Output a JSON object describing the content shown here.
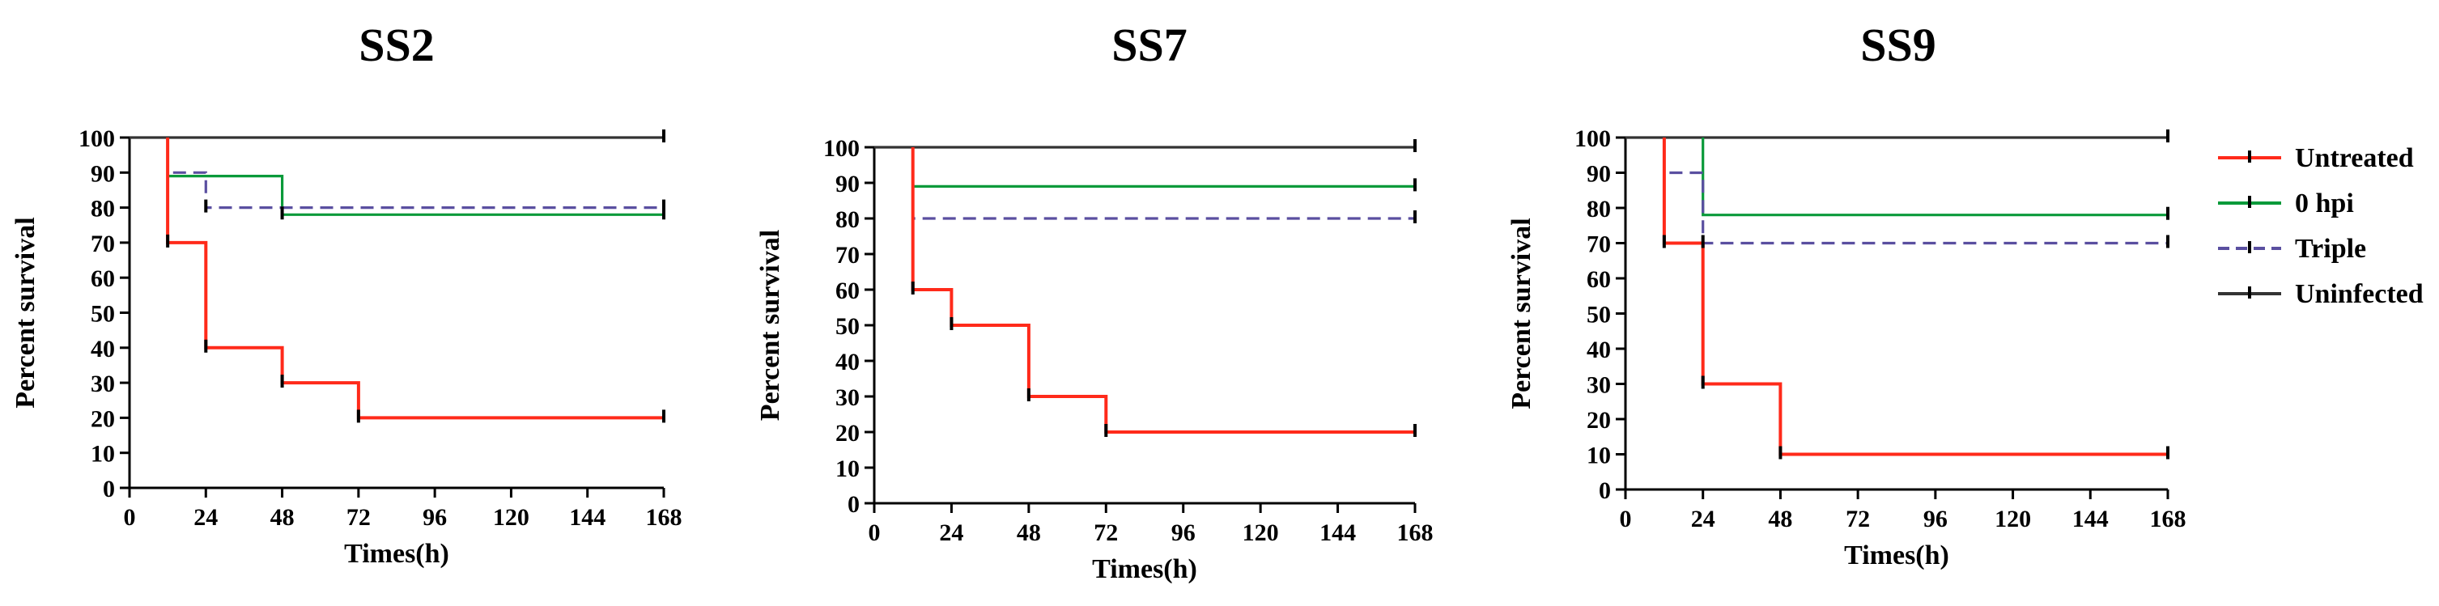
{
  "colors": {
    "untreated": "#ff2a1a",
    "hpi0": "#0a9a3a",
    "triple": "#5a4fa0",
    "uninfected": "#333333",
    "axis": "#000000",
    "tick_mark": "#000000"
  },
  "legend": {
    "items": [
      {
        "key": "untreated",
        "label": "Untreated",
        "style": "solid"
      },
      {
        "key": "hpi0",
        "label": "0 hpi",
        "style": "solid"
      },
      {
        "key": "triple",
        "label": "Triple",
        "style": "dashed"
      },
      {
        "key": "uninfected",
        "label": "Uninfected",
        "style": "solid"
      }
    ]
  },
  "chart_data": [
    {
      "type": "line",
      "title": "SS2",
      "xlabel": "Times(h)",
      "ylabel": "Percent survival",
      "xlim": [
        0,
        168
      ],
      "ylim": [
        0,
        100
      ],
      "xticks": [
        0,
        24,
        48,
        72,
        96,
        120,
        144,
        168
      ],
      "yticks": [
        0,
        10,
        20,
        30,
        40,
        50,
        60,
        70,
        80,
        90,
        100
      ],
      "series": [
        {
          "name": "Uninfected",
          "key": "uninfected",
          "steps": [
            [
              0,
              100
            ],
            [
              168,
              100
            ]
          ]
        },
        {
          "name": "0 hpi",
          "key": "hpi0",
          "steps": [
            [
              12,
              100
            ],
            [
              12,
              89
            ],
            [
              48,
              89
            ],
            [
              48,
              78
            ],
            [
              168,
              78
            ]
          ]
        },
        {
          "name": "Triple",
          "key": "triple",
          "steps": [
            [
              12,
              100
            ],
            [
              12,
              90
            ],
            [
              24,
              90
            ],
            [
              24,
              80
            ],
            [
              168,
              80
            ]
          ]
        },
        {
          "name": "Untreated",
          "key": "untreated",
          "steps": [
            [
              12,
              100
            ],
            [
              12,
              70
            ],
            [
              24,
              70
            ],
            [
              24,
              40
            ],
            [
              48,
              40
            ],
            [
              48,
              30
            ],
            [
              72,
              30
            ],
            [
              72,
              20
            ],
            [
              168,
              20
            ]
          ]
        }
      ],
      "censor_marks": [
        {
          "key": "untreated",
          "points": [
            [
              12,
              70
            ],
            [
              24,
              40
            ],
            [
              48,
              30
            ],
            [
              72,
              20
            ],
            [
              168,
              20
            ]
          ]
        },
        {
          "key": "hpi0",
          "points": [
            [
              48,
              78
            ],
            [
              168,
              78
            ]
          ]
        },
        {
          "key": "triple",
          "points": [
            [
              24,
              80
            ],
            [
              168,
              80
            ]
          ]
        },
        {
          "key": "uninfected",
          "points": [
            [
              168,
              100
            ]
          ]
        }
      ]
    },
    {
      "type": "line",
      "title": "SS7",
      "xlabel": "Times(h)",
      "ylabel": "Percent survival",
      "xlim": [
        0,
        168
      ],
      "ylim": [
        0,
        100
      ],
      "xticks": [
        0,
        24,
        48,
        72,
        96,
        120,
        144,
        168
      ],
      "yticks": [
        0,
        10,
        20,
        30,
        40,
        50,
        60,
        70,
        80,
        90,
        100
      ],
      "series": [
        {
          "name": "Uninfected",
          "key": "uninfected",
          "steps": [
            [
              0,
              100
            ],
            [
              168,
              100
            ]
          ]
        },
        {
          "name": "0 hpi",
          "key": "hpi0",
          "steps": [
            [
              12,
              100
            ],
            [
              12,
              89
            ],
            [
              168,
              89
            ]
          ]
        },
        {
          "name": "Triple",
          "key": "triple",
          "steps": [
            [
              12,
              100
            ],
            [
              12,
              80
            ],
            [
              168,
              80
            ]
          ]
        },
        {
          "name": "Untreated",
          "key": "untreated",
          "steps": [
            [
              12,
              100
            ],
            [
              12,
              60
            ],
            [
              24,
              60
            ],
            [
              24,
              50
            ],
            [
              48,
              50
            ],
            [
              48,
              30
            ],
            [
              72,
              30
            ],
            [
              72,
              20
            ],
            [
              168,
              20
            ]
          ]
        }
      ],
      "censor_marks": [
        {
          "key": "untreated",
          "points": [
            [
              12,
              60
            ],
            [
              24,
              50
            ],
            [
              48,
              30
            ],
            [
              72,
              20
            ],
            [
              168,
              20
            ]
          ]
        },
        {
          "key": "hpi0",
          "points": [
            [
              168,
              89
            ]
          ]
        },
        {
          "key": "triple",
          "points": [
            [
              168,
              80
            ]
          ]
        },
        {
          "key": "uninfected",
          "points": [
            [
              168,
              100
            ]
          ]
        }
      ]
    },
    {
      "type": "line",
      "title": "SS9",
      "xlabel": "Times(h)",
      "ylabel": "Percent survival",
      "xlim": [
        0,
        168
      ],
      "ylim": [
        0,
        100
      ],
      "xticks": [
        0,
        24,
        48,
        72,
        96,
        120,
        144,
        168
      ],
      "yticks": [
        0,
        10,
        20,
        30,
        40,
        50,
        60,
        70,
        80,
        90,
        100
      ],
      "series": [
        {
          "name": "Uninfected",
          "key": "uninfected",
          "steps": [
            [
              0,
              100
            ],
            [
              168,
              100
            ]
          ]
        },
        {
          "name": "0 hpi",
          "key": "hpi0",
          "steps": [
            [
              24,
              100
            ],
            [
              24,
              78
            ],
            [
              168,
              78
            ]
          ]
        },
        {
          "name": "Triple",
          "key": "triple",
          "steps": [
            [
              12,
              100
            ],
            [
              12,
              90
            ],
            [
              24,
              90
            ],
            [
              24,
              70
            ],
            [
              168,
              70
            ]
          ]
        },
        {
          "name": "Untreated",
          "key": "untreated",
          "steps": [
            [
              12,
              100
            ],
            [
              12,
              70
            ],
            [
              24,
              70
            ],
            [
              24,
              30
            ],
            [
              48,
              30
            ],
            [
              48,
              10
            ],
            [
              168,
              10
            ]
          ]
        }
      ],
      "censor_marks": [
        {
          "key": "untreated",
          "points": [
            [
              12,
              70
            ],
            [
              24,
              30
            ],
            [
              48,
              10
            ],
            [
              168,
              10
            ]
          ]
        },
        {
          "key": "hpi0",
          "points": [
            [
              168,
              78
            ]
          ]
        },
        {
          "key": "triple",
          "points": [
            [
              24,
              70
            ],
            [
              168,
              70
            ]
          ]
        },
        {
          "key": "uninfected",
          "points": [
            [
              168,
              100
            ]
          ]
        }
      ]
    }
  ]
}
